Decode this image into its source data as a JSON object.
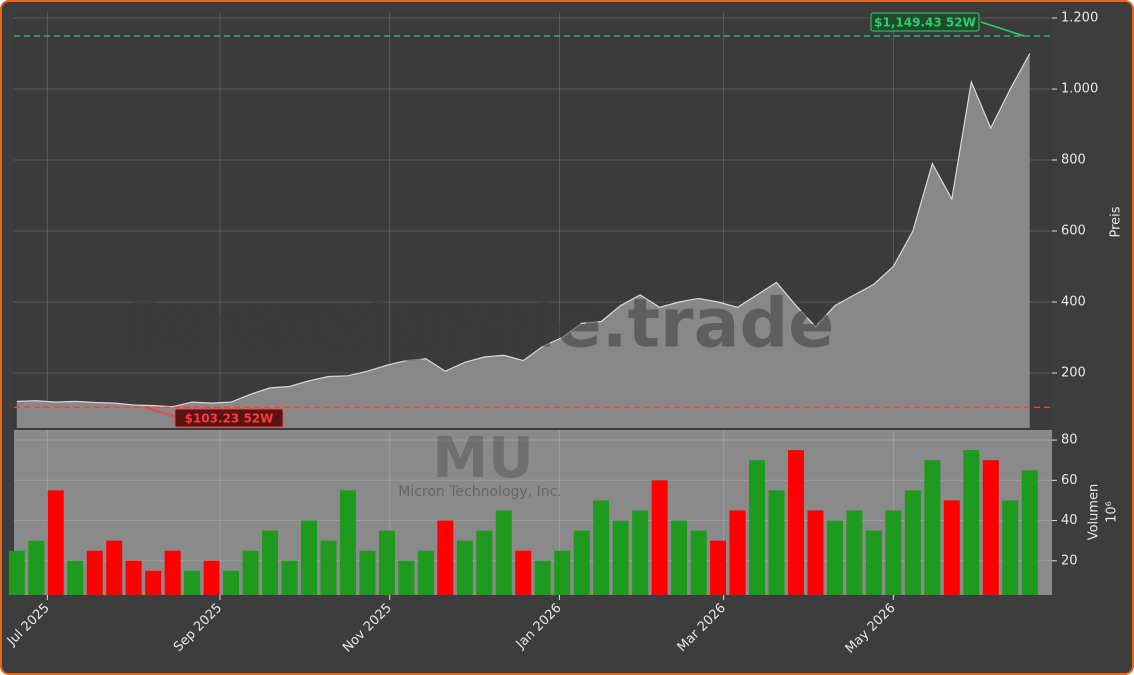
{
  "chart_data": [
    {
      "type": "area",
      "x": [
        "2025-06-20",
        "2025-06-27",
        "2025-07-04",
        "2025-07-11",
        "2025-07-18",
        "2025-07-25",
        "2025-08-01",
        "2025-08-08",
        "2025-08-15",
        "2025-08-22",
        "2025-08-29",
        "2025-09-05",
        "2025-09-12",
        "2025-09-19",
        "2025-09-26",
        "2025-10-03",
        "2025-10-10",
        "2025-10-17",
        "2025-10-24",
        "2025-10-31",
        "2025-11-07",
        "2025-11-14",
        "2025-11-21",
        "2025-11-28",
        "2025-12-05",
        "2025-12-12",
        "2025-12-19",
        "2025-12-26",
        "2026-01-02",
        "2026-01-09",
        "2026-01-16",
        "2026-01-23",
        "2026-01-30",
        "2026-02-06",
        "2026-02-13",
        "2026-02-20",
        "2026-02-27",
        "2026-03-06",
        "2026-03-13",
        "2026-03-20",
        "2026-03-27",
        "2026-04-03",
        "2026-04-10",
        "2026-04-17",
        "2026-04-24",
        "2026-05-01",
        "2026-05-08",
        "2026-05-15",
        "2026-05-22",
        "2026-05-29",
        "2026-06-05",
        "2026-06-12",
        "2026-06-19"
      ],
      "values": [
        120,
        122,
        118,
        120,
        117,
        115,
        110,
        108,
        105,
        118,
        115,
        118,
        140,
        158,
        162,
        178,
        190,
        192,
        205,
        222,
        235,
        240,
        205,
        230,
        245,
        250,
        235,
        275,
        300,
        340,
        345,
        390,
        420,
        385,
        400,
        410,
        400,
        385,
        420,
        455,
        390,
        330,
        390,
        420,
        450,
        500,
        600,
        790,
        690,
        1020,
        890,
        1000,
        1100
      ],
      "color": "#8c8c8c",
      "xlim": [
        "2025-06-19",
        "2026-06-27"
      ],
      "ylim": [
        45,
        1217
      ],
      "yticks": [
        200,
        400,
        600,
        800,
        {
          "value": 1000,
          "label": "1.000"
        },
        {
          "value": 1200,
          "label": "1.200"
        }
      ],
      "ylabel": "Preis",
      "grid": true,
      "reference_lines": [
        {
          "value": 1149.43,
          "x": "2026-06-17",
          "label": "$1,149.43 52W",
          "color": "#2ecc71"
        },
        {
          "value": 103.23,
          "x": "2025-08-05",
          "label": "$103.23 52W",
          "color": "#ff3b3b"
        }
      ],
      "watermarks": [
        "forexsignale.trade",
        "MU",
        "Micron Technology, Inc."
      ]
    },
    {
      "type": "bar",
      "x": [
        "2025-06-20",
        "2025-06-27",
        "2025-07-04",
        "2025-07-11",
        "2025-07-18",
        "2025-07-25",
        "2025-08-01",
        "2025-08-08",
        "2025-08-15",
        "2025-08-22",
        "2025-08-29",
        "2025-09-05",
        "2025-09-12",
        "2025-09-19",
        "2025-09-26",
        "2025-10-03",
        "2025-10-10",
        "2025-10-17",
        "2025-10-24",
        "2025-10-31",
        "2025-11-07",
        "2025-11-14",
        "2025-11-21",
        "2025-11-28",
        "2025-12-05",
        "2025-12-12",
        "2025-12-19",
        "2025-12-26",
        "2026-01-02",
        "2026-01-09",
        "2026-01-16",
        "2026-01-23",
        "2026-01-30",
        "2026-02-06",
        "2026-02-13",
        "2026-02-20",
        "2026-02-27",
        "2026-03-06",
        "2026-03-13",
        "2026-03-20",
        "2026-03-27",
        "2026-04-03",
        "2026-04-10",
        "2026-04-17",
        "2026-04-24",
        "2026-05-01",
        "2026-05-08",
        "2026-05-15",
        "2026-05-22",
        "2026-05-29",
        "2026-06-05",
        "2026-06-12",
        "2026-06-19"
      ],
      "values": [
        25,
        30,
        55,
        20,
        25,
        30,
        20,
        15,
        25,
        15,
        20,
        15,
        25,
        35,
        20,
        40,
        30,
        55,
        25,
        35,
        20,
        25,
        40,
        30,
        35,
        45,
        25,
        20,
        25,
        35,
        50,
        40,
        45,
        60,
        40,
        35,
        30,
        45,
        70,
        55,
        75,
        45,
        40,
        45,
        35,
        45,
        55,
        70,
        50,
        75,
        70,
        50,
        65
      ],
      "up_color": "#1e9a1e",
      "down_color": "#ff0000",
      "xlim": [
        "2025-06-19",
        "2026-06-27"
      ],
      "ylim": [
        3,
        85
      ],
      "yticks": [
        20,
        40,
        60,
        80
      ],
      "ylabel": "Volumen",
      "yscale_label": "10⁶",
      "xticks": [
        {
          "value": "2025-07-01",
          "label": "Jul 2025"
        },
        {
          "value": "2025-09-01",
          "label": "Sep 2025"
        },
        {
          "value": "2025-11-01",
          "label": "Nov 2025"
        },
        {
          "value": "2026-01-01",
          "label": "Jan 2026"
        },
        {
          "value": "2026-03-01",
          "label": "Mar 2026"
        },
        {
          "value": "2026-05-01",
          "label": "May 2026"
        }
      ],
      "grid": true
    }
  ]
}
